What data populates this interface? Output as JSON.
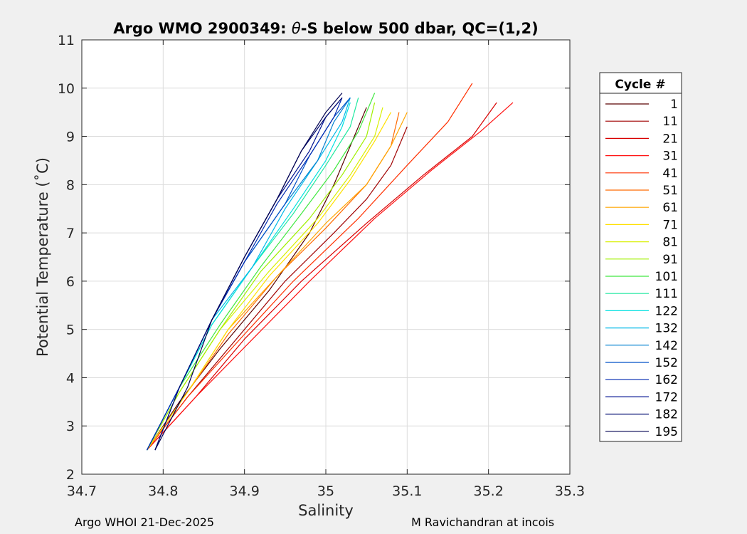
{
  "chart_data": {
    "type": "line",
    "title_prefix": "Argo WMO 2900349: ",
    "title_theta": "θ",
    "title_suffix": "-S below 500 dbar,  QC=(1,2)",
    "xlabel": "Salinity",
    "ylabel": "Potential Temperature (˚C)",
    "xlim": [
      34.7,
      35.3
    ],
    "ylim": [
      2,
      11
    ],
    "xticks": [
      34.7,
      34.8,
      34.9,
      35,
      35.1,
      35.2,
      35.3
    ],
    "xtick_labels": [
      "34.7",
      "34.8",
      "34.9",
      "35",
      "35.1",
      "35.2",
      "35.3"
    ],
    "yticks": [
      2,
      3,
      4,
      5,
      6,
      7,
      8,
      9,
      10,
      11
    ],
    "ytick_labels": [
      "2",
      "3",
      "4",
      "5",
      "6",
      "7",
      "8",
      "9",
      "10",
      "11"
    ],
    "grid": true,
    "legend": {
      "title": "Cycle #",
      "position": "outside-right",
      "entries": [
        {
          "label": "1",
          "color": "#5a0000"
        },
        {
          "label": "11",
          "color": "#a00000"
        },
        {
          "label": "21",
          "color": "#d80000"
        },
        {
          "label": "31",
          "color": "#ff1010"
        },
        {
          "label": "41",
          "color": "#ff3000"
        },
        {
          "label": "51",
          "color": "#ff6a00"
        },
        {
          "label": "61",
          "color": "#ffa500"
        },
        {
          "label": "71",
          "color": "#ffe000"
        },
        {
          "label": "81",
          "color": "#d8f000"
        },
        {
          "label": "91",
          "color": "#a0f000"
        },
        {
          "label": "101",
          "color": "#40e840"
        },
        {
          "label": "111",
          "color": "#20e8a0"
        },
        {
          "label": "122",
          "color": "#00e0e0"
        },
        {
          "label": "132",
          "color": "#00b8e8"
        },
        {
          "label": "142",
          "color": "#0080d0"
        },
        {
          "label": "152",
          "color": "#0050c8"
        },
        {
          "label": "162",
          "color": "#0028b0"
        },
        {
          "label": "172",
          "color": "#001090"
        },
        {
          "label": "182",
          "color": "#000a70"
        },
        {
          "label": "195",
          "color": "#000050"
        }
      ]
    },
    "series": [
      {
        "cycle": "1",
        "color": "#5a0000",
        "x": [
          34.78,
          34.82,
          34.87,
          34.93,
          34.98,
          35.01,
          35.03,
          35.05
        ],
        "y": [
          2.5,
          3.5,
          4.6,
          5.8,
          7.0,
          8.0,
          8.8,
          9.6
        ]
      },
      {
        "cycle": "11",
        "color": "#a00000",
        "x": [
          34.78,
          34.83,
          34.89,
          34.95,
          35.01,
          35.05,
          35.08,
          35.1
        ],
        "y": [
          2.5,
          3.6,
          4.8,
          6.0,
          7.0,
          7.7,
          8.4,
          9.2
        ]
      },
      {
        "cycle": "21",
        "color": "#d80000",
        "x": [
          34.78,
          34.84,
          34.9,
          34.97,
          35.05,
          35.12,
          35.18,
          35.21
        ],
        "y": [
          2.5,
          3.6,
          4.8,
          6.0,
          7.2,
          8.2,
          9.0,
          9.7
        ]
      },
      {
        "cycle": "31",
        "color": "#ff1010",
        "x": [
          34.78,
          34.84,
          34.91,
          34.98,
          35.06,
          35.13,
          35.19,
          35.23
        ],
        "y": [
          2.5,
          3.6,
          4.8,
          6.0,
          7.3,
          8.3,
          9.1,
          9.7
        ]
      },
      {
        "cycle": "41",
        "color": "#ff3000",
        "x": [
          34.78,
          34.83,
          34.9,
          34.96,
          35.04,
          35.1,
          35.15,
          35.18
        ],
        "y": [
          2.5,
          3.6,
          4.9,
          6.0,
          7.3,
          8.4,
          9.3,
          10.1
        ]
      },
      {
        "cycle": "51",
        "color": "#ff6a00",
        "x": [
          34.78,
          34.83,
          34.88,
          34.94,
          35.0,
          35.05,
          35.08,
          35.09
        ],
        "y": [
          2.5,
          3.7,
          4.9,
          6.1,
          7.1,
          8.0,
          8.8,
          9.5
        ]
      },
      {
        "cycle": "61",
        "color": "#ffa500",
        "x": [
          34.78,
          34.83,
          34.88,
          34.94,
          35.0,
          35.05,
          35.08,
          35.1
        ],
        "y": [
          2.5,
          3.7,
          5.0,
          6.1,
          7.2,
          8.0,
          8.8,
          9.5
        ]
      },
      {
        "cycle": "71",
        "color": "#ffe000",
        "x": [
          34.78,
          34.83,
          34.88,
          34.93,
          34.99,
          35.03,
          35.06,
          35.08
        ],
        "y": [
          2.5,
          3.7,
          5.0,
          6.1,
          7.2,
          8.1,
          8.9,
          9.5
        ]
      },
      {
        "cycle": "81",
        "color": "#d8f000",
        "x": [
          34.78,
          34.82,
          34.87,
          34.93,
          34.99,
          35.03,
          35.06,
          35.07
        ],
        "y": [
          2.5,
          3.7,
          5.0,
          6.2,
          7.3,
          8.2,
          9.0,
          9.6
        ]
      },
      {
        "cycle": "91",
        "color": "#a0f000",
        "x": [
          34.78,
          34.82,
          34.87,
          34.92,
          34.98,
          35.02,
          35.05,
          35.06
        ],
        "y": [
          2.5,
          3.7,
          5.0,
          6.2,
          7.3,
          8.2,
          9.0,
          9.7
        ]
      },
      {
        "cycle": "101",
        "color": "#40e840",
        "x": [
          34.78,
          34.82,
          34.87,
          34.92,
          34.97,
          35.01,
          35.04,
          35.06
        ],
        "y": [
          2.5,
          3.8,
          5.1,
          6.3,
          7.4,
          8.3,
          9.1,
          9.9
        ]
      },
      {
        "cycle": "111",
        "color": "#20e8a0",
        "x": [
          34.78,
          34.82,
          34.86,
          34.91,
          34.96,
          35.0,
          35.03,
          35.04
        ],
        "y": [
          2.5,
          3.8,
          5.1,
          6.3,
          7.4,
          8.4,
          9.2,
          9.8
        ]
      },
      {
        "cycle": "122",
        "color": "#00e0e0",
        "x": [
          34.78,
          34.82,
          34.86,
          34.91,
          34.96,
          35.0,
          35.02,
          35.03
        ],
        "y": [
          2.5,
          3.8,
          5.1,
          6.3,
          7.5,
          8.5,
          9.2,
          9.7
        ]
      },
      {
        "cycle": "132",
        "color": "#00b8e8",
        "x": [
          34.78,
          34.82,
          34.86,
          34.91,
          34.95,
          34.99,
          35.02,
          35.03
        ],
        "y": [
          2.5,
          3.8,
          5.2,
          6.3,
          7.5,
          8.5,
          9.3,
          9.8
        ]
      },
      {
        "cycle": "142",
        "color": "#0080d0",
        "x": [
          34.78,
          34.82,
          34.86,
          34.9,
          34.95,
          34.99,
          35.01,
          35.03
        ],
        "y": [
          2.5,
          3.8,
          5.2,
          6.4,
          7.6,
          8.5,
          9.3,
          9.8
        ]
      },
      {
        "cycle": "152",
        "color": "#0050c8",
        "x": [
          34.78,
          34.82,
          34.86,
          34.9,
          34.95,
          34.98,
          35.01,
          35.03
        ],
        "y": [
          2.5,
          3.8,
          5.2,
          6.4,
          7.6,
          8.6,
          9.4,
          9.8
        ]
      },
      {
        "cycle": "162",
        "color": "#0028b0",
        "x": [
          34.78,
          34.82,
          34.86,
          34.9,
          34.94,
          34.98,
          35.01,
          35.02
        ],
        "y": [
          2.5,
          3.8,
          5.2,
          6.4,
          7.6,
          8.6,
          9.4,
          9.8
        ]
      },
      {
        "cycle": "172",
        "color": "#001090",
        "x": [
          34.79,
          34.82,
          34.86,
          34.9,
          34.94,
          34.98,
          35.0,
          35.02
        ],
        "y": [
          2.5,
          3.8,
          5.2,
          6.5,
          7.7,
          8.7,
          9.4,
          9.8
        ]
      },
      {
        "cycle": "182",
        "color": "#000a70",
        "x": [
          34.79,
          34.82,
          34.86,
          34.9,
          34.94,
          34.97,
          35.0,
          35.02
        ],
        "y": [
          2.5,
          3.8,
          5.2,
          6.5,
          7.7,
          8.7,
          9.4,
          9.8
        ]
      },
      {
        "cycle": "195",
        "color": "#000050",
        "x": [
          34.79,
          34.83,
          34.86,
          34.9,
          34.94,
          34.97,
          35.0,
          35.02
        ],
        "y": [
          2.5,
          3.8,
          5.2,
          6.5,
          7.7,
          8.7,
          9.5,
          9.9
        ]
      }
    ]
  },
  "footer": {
    "left": "Argo WHOI 21-Dec-2025",
    "right": "M Ravichandran at incois"
  }
}
